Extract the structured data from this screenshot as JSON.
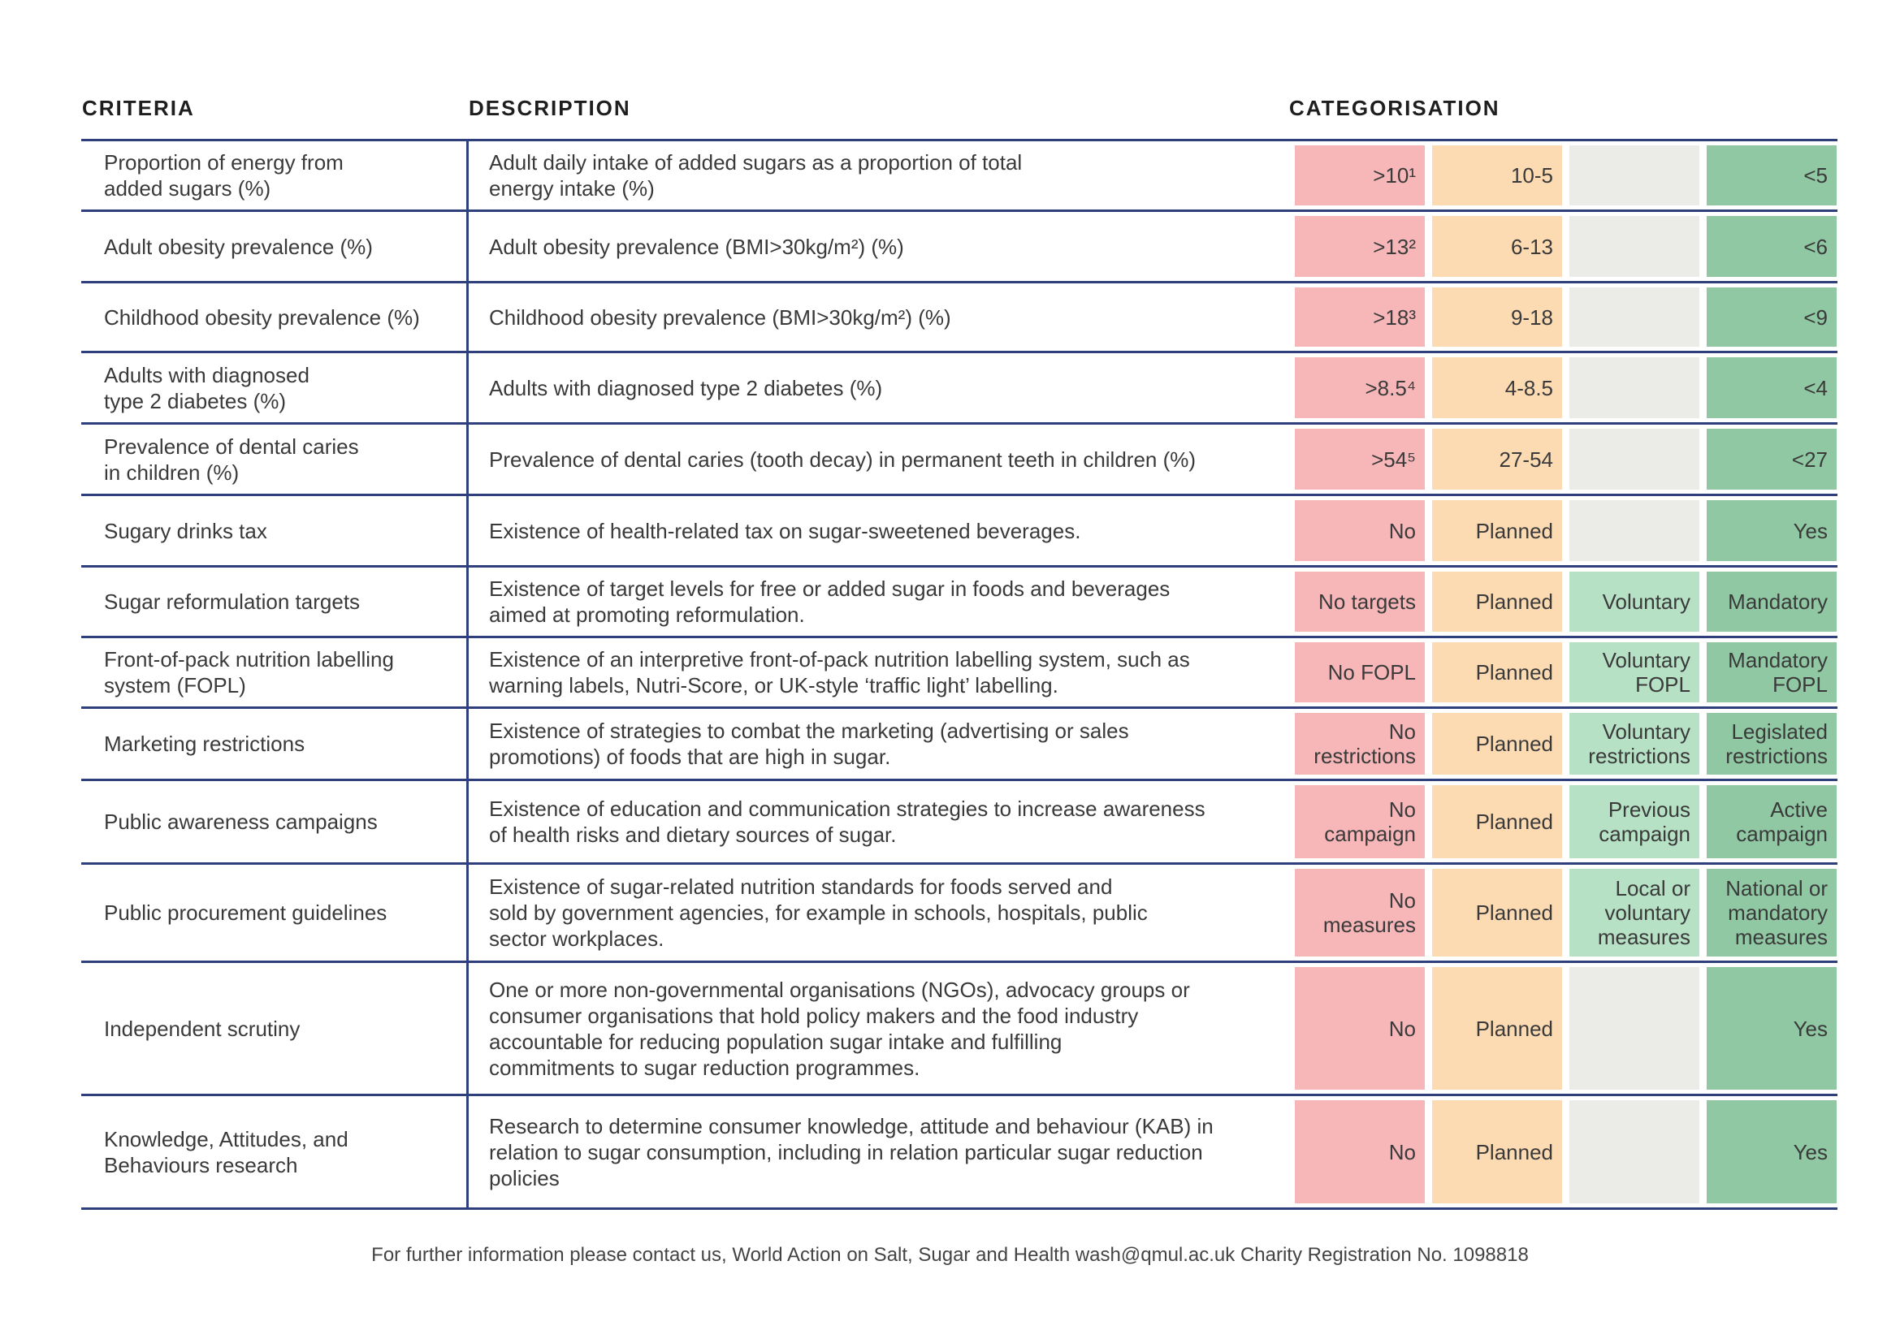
{
  "headers": {
    "criteria": "CRITERIA",
    "description": "DESCRIPTION",
    "categorisation": "CATEGORISATION"
  },
  "rows": [
    {
      "criteria": "Proportion of energy from\nadded sugars (%)",
      "description": "Adult daily intake of added sugars as a proportion of total\nenergy intake (%)",
      "cat": [
        ">10¹",
        "10-5",
        "",
        "<5"
      ]
    },
    {
      "criteria": "Adult obesity prevalence (%)",
      "description": "Adult obesity prevalence (BMI>30kg/m²) (%)",
      "cat": [
        ">13²",
        "6-13",
        "",
        "<6"
      ]
    },
    {
      "criteria": "Childhood obesity prevalence (%)",
      "description": "Childhood obesity prevalence (BMI>30kg/m²) (%)",
      "cat": [
        ">18³",
        "9-18",
        "",
        "<9"
      ]
    },
    {
      "criteria": "Adults with diagnosed\ntype 2 diabetes (%)",
      "description": "Adults with diagnosed type 2 diabetes (%)",
      "cat": [
        ">8.5⁴",
        "4-8.5",
        "",
        "<4"
      ]
    },
    {
      "criteria": "Prevalence of dental caries\nin children (%)",
      "description": "Prevalence of dental caries (tooth decay) in permanent teeth in children (%)",
      "cat": [
        ">54⁵",
        "27-54",
        "",
        "<27"
      ]
    },
    {
      "criteria": "Sugary drinks tax",
      "description": "Existence of health-related tax on sugar-sweetened beverages.",
      "cat": [
        "No",
        "Planned",
        "",
        "Yes"
      ]
    },
    {
      "criteria": "Sugar reformulation targets",
      "description": "Existence of target levels for free or added sugar in foods and beverages\naimed at promoting reformulation.",
      "cat": [
        "No targets",
        "Planned",
        "Voluntary",
        "Mandatory"
      ]
    },
    {
      "criteria": "Front-of-pack nutrition labelling\nsystem (FOPL)",
      "description": "Existence of an interpretive front-of-pack nutrition labelling system, such as\nwarning labels, Nutri-Score, or UK-style ‘traffic light’ labelling.",
      "cat": [
        "No FOPL",
        "Planned",
        "Voluntary\nFOPL",
        "Mandatory\nFOPL"
      ]
    },
    {
      "criteria": "Marketing restrictions",
      "description": "Existence of strategies to combat the marketing (advertising or sales\npromotions) of foods that are high in sugar.",
      "cat": [
        "No\nrestrictions",
        "Planned",
        "Voluntary\nrestrictions",
        "Legislated\nrestrictions"
      ]
    },
    {
      "criteria": "Public awareness campaigns",
      "description": "Existence of education and communication strategies to increase awareness\nof health risks and dietary sources of sugar.",
      "cat": [
        "No\ncampaign",
        "Planned",
        "Previous\ncampaign",
        "Active\ncampaign"
      ]
    },
    {
      "criteria": "Public procurement guidelines",
      "description": "Existence of sugar-related nutrition standards for foods served and\nsold by government agencies, for example in schools, hospitals, public\nsector workplaces.",
      "cat": [
        "No\nmeasures",
        "Planned",
        "Local or\nvoluntary\nmeasures",
        "National or\nmandatory\nmeasures"
      ]
    },
    {
      "criteria": "Independent scrutiny",
      "description": "One or more non-governmental organisations (NGOs), advocacy groups or\nconsumer organisations that hold policy makers and the food industry\naccountable for reducing population sugar intake and fulfilling\ncommitments to sugar reduction programmes.",
      "cat": [
        "No",
        "Planned",
        "",
        "Yes"
      ]
    },
    {
      "criteria": "Knowledge, Attitudes, and\nBehaviours research",
      "description": "Research to determine consumer knowledge, attitude and behaviour (KAB) in\nrelation to sugar consumption, including in relation particular sugar reduction\npolicies",
      "cat": [
        "No",
        "Planned",
        "",
        "Yes"
      ]
    }
  ],
  "footer": "For further information please contact us, World Action on Salt, Sugar and Health wash@qmul.ac.uk Charity Registration No. 1098818"
}
